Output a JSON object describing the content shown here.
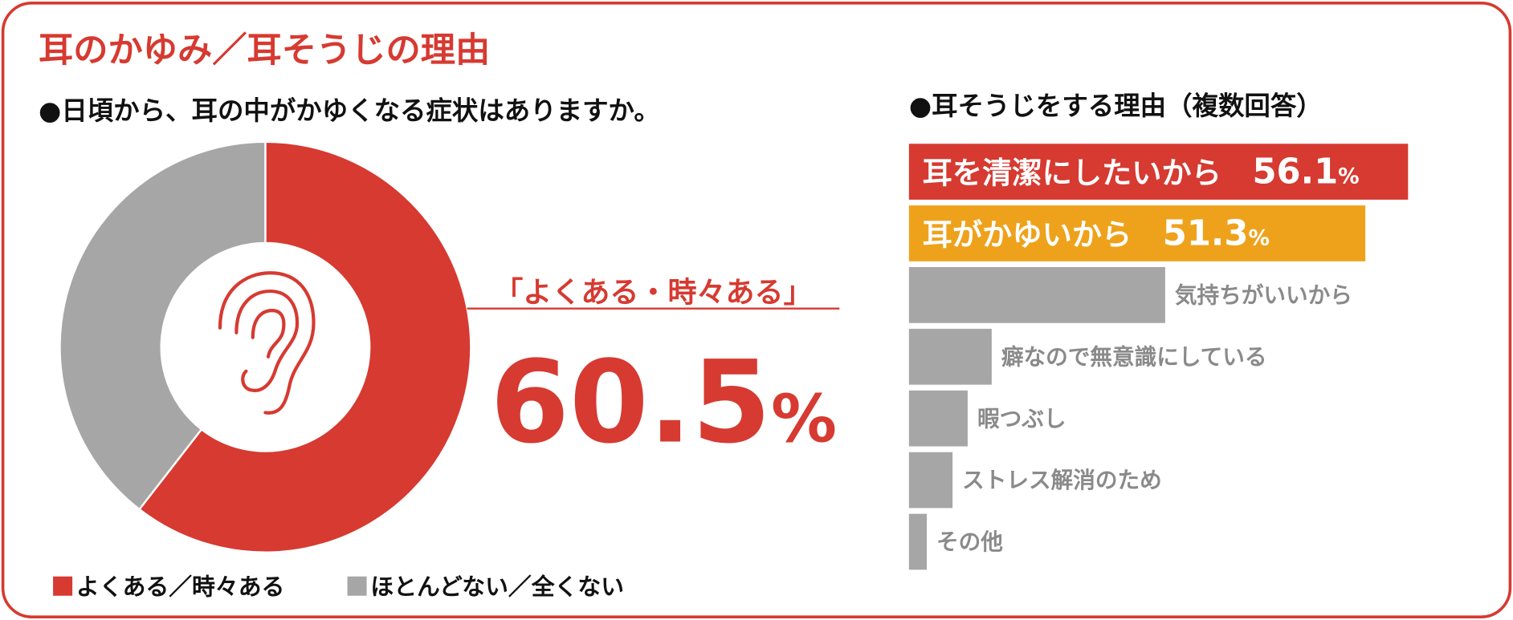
{
  "title": "耳のかゆみ／耳そうじの理由",
  "chart_data": [
    {
      "type": "pie",
      "donut": true,
      "title": "●日頃から、耳の中がかゆくなる症状はありますか。",
      "categories": [
        "よくある／時々ある",
        "ほとんどない／全くない"
      ],
      "values": [
        60.5,
        39.5
      ],
      "value_labels": [
        "60.5%",
        null
      ],
      "colors": [
        "#d63a31",
        "#a6a6a6"
      ],
      "annotation": "「よくある・時々ある」"
    },
    {
      "type": "bar",
      "orientation": "horizontal",
      "title": "●耳そうじをする理由（複数回答）",
      "categories": [
        "耳を清潔にしたいから",
        "耳がかゆいから",
        "気持ちがいいから",
        "癖なので無意識にしている",
        "暇つぶし",
        "ストレス解消のため",
        "その他"
      ],
      "values": [
        56.1,
        51.3,
        28.8,
        9.3,
        6.6,
        4.9,
        2.0
      ],
      "value_labels": [
        "56.1%",
        "51.3%",
        null,
        null,
        null,
        null,
        null
      ],
      "colors": [
        "#d63a31",
        "#eea21b",
        "#a6a6a6",
        "#a6a6a6",
        "#a6a6a6",
        "#a6a6a6",
        "#a6a6a6"
      ]
    }
  ]
}
